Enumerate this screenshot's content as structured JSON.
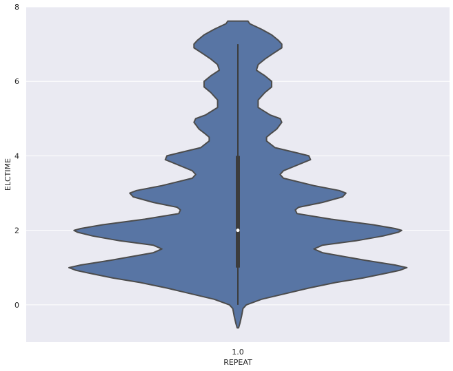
{
  "chart_data": {
    "type": "violin",
    "title": "",
    "xlabel": "REPEAT",
    "ylabel": "ELCTIME",
    "categories": [
      "1.0"
    ],
    "ylim": [
      -1,
      8
    ],
    "yticks": [
      0,
      2,
      4,
      6,
      8
    ],
    "grid": true,
    "colors": {
      "background": "#eaeaf2",
      "grid": "#ffffff",
      "body": "#5875a4",
      "outline": "#4c4c4c",
      "box": "#3c3c3c",
      "median": "#ffffff"
    },
    "box": {
      "whisker_low": 0,
      "q1": 1,
      "median": 2,
      "q3": 4,
      "whisker_high": 7
    },
    "density": {
      "y": [
        -0.62,
        -0.5,
        -0.3,
        -0.1,
        0.0,
        0.15,
        0.3,
        0.45,
        0.6,
        0.72,
        0.85,
        0.93,
        1.0,
        1.07,
        1.2,
        1.4,
        1.5,
        1.6,
        1.72,
        1.85,
        1.95,
        2.0,
        2.05,
        2.15,
        2.3,
        2.45,
        2.55,
        2.62,
        2.75,
        2.9,
        3.0,
        3.07,
        3.2,
        3.4,
        3.5,
        3.6,
        3.75,
        3.9,
        4.0,
        4.08,
        4.22,
        4.4,
        4.5,
        4.58,
        4.72,
        4.9,
        5.0,
        5.1,
        5.3,
        5.5,
        5.7,
        5.85,
        6.0,
        6.15,
        6.3,
        6.45,
        6.6,
        6.75,
        6.9,
        7.0,
        7.1,
        7.25,
        7.4,
        7.55,
        7.62
      ],
      "width": [
        0.004,
        0.012,
        0.022,
        0.03,
        0.05,
        0.14,
        0.28,
        0.42,
        0.58,
        0.74,
        0.88,
        0.96,
        1.0,
        0.93,
        0.75,
        0.5,
        0.45,
        0.5,
        0.7,
        0.86,
        0.95,
        0.97,
        0.93,
        0.8,
        0.55,
        0.35,
        0.34,
        0.36,
        0.5,
        0.62,
        0.64,
        0.6,
        0.45,
        0.27,
        0.25,
        0.27,
        0.35,
        0.43,
        0.42,
        0.35,
        0.22,
        0.17,
        0.17,
        0.19,
        0.23,
        0.26,
        0.25,
        0.19,
        0.12,
        0.12,
        0.16,
        0.2,
        0.2,
        0.16,
        0.11,
        0.12,
        0.16,
        0.21,
        0.26,
        0.26,
        0.24,
        0.2,
        0.14,
        0.07,
        0.06
      ]
    }
  }
}
